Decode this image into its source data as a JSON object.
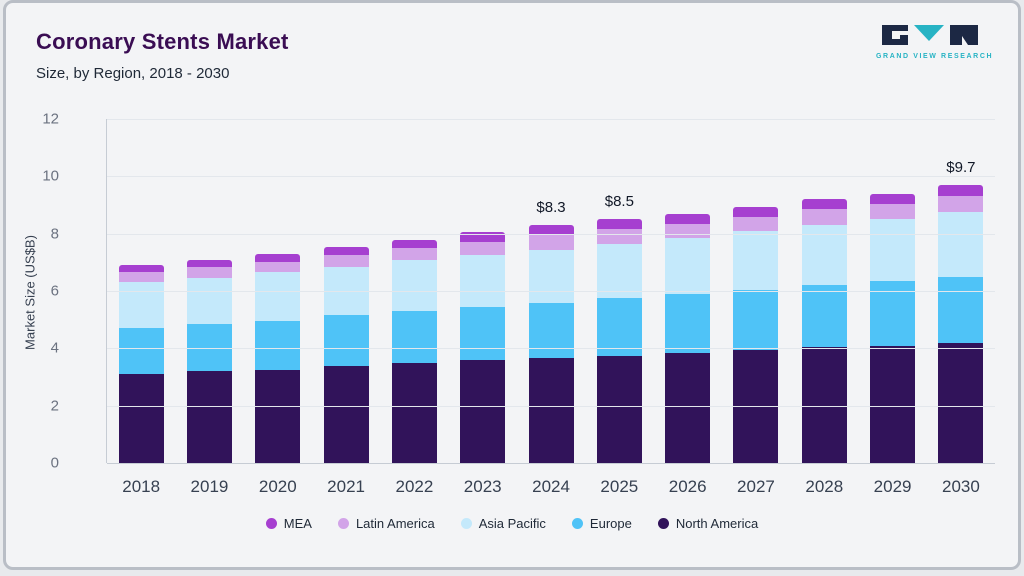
{
  "header": {
    "title": "Coronary Stents Market",
    "subtitle": "Size, by Region, 2018 - 2030",
    "logo_text": "GRAND VIEW RESEARCH"
  },
  "colors": {
    "title": "#3a0d53",
    "logo_teal": "#27b3c4",
    "logo_navy": "#1c2844",
    "background": "#f3f4f6"
  },
  "chart_data": {
    "type": "bar",
    "stacked": true,
    "title": "Coronary Stents Market Size, by Region, 2018 - 2030",
    "xlabel": "",
    "ylabel": "Market Size (US$B)",
    "ylim": [
      0,
      12
    ],
    "yticks": [
      0,
      2,
      4,
      6,
      8,
      10,
      12
    ],
    "grid": true,
    "legend_position": "bottom",
    "categories": [
      "2018",
      "2019",
      "2020",
      "2021",
      "2022",
      "2023",
      "2024",
      "2025",
      "2026",
      "2027",
      "2028",
      "2029",
      "2030"
    ],
    "series": [
      {
        "name": "North America",
        "color": "#31135a",
        "values": [
          3.1,
          3.2,
          3.25,
          3.4,
          3.5,
          3.6,
          3.65,
          3.75,
          3.85,
          3.95,
          4.05,
          4.1,
          4.2
        ]
      },
      {
        "name": "Europe",
        "color": "#4fc3f7",
        "values": [
          1.6,
          1.65,
          1.7,
          1.75,
          1.8,
          1.85,
          1.95,
          2.0,
          2.05,
          2.1,
          2.15,
          2.25,
          2.3
        ]
      },
      {
        "name": "Asia Pacific",
        "color": "#c4e9fb",
        "values": [
          1.6,
          1.6,
          1.7,
          1.7,
          1.8,
          1.8,
          1.85,
          1.9,
          1.95,
          2.05,
          2.1,
          2.15,
          2.25
        ]
      },
      {
        "name": "Latin America",
        "color": "#d2a4e8",
        "values": [
          0.35,
          0.38,
          0.38,
          0.42,
          0.42,
          0.47,
          0.5,
          0.5,
          0.5,
          0.5,
          0.55,
          0.55,
          0.55
        ]
      },
      {
        "name": "MEA",
        "color": "#a63fd0",
        "values": [
          0.25,
          0.27,
          0.27,
          0.28,
          0.28,
          0.33,
          0.35,
          0.35,
          0.35,
          0.35,
          0.35,
          0.35,
          0.4
        ]
      }
    ],
    "totals": [
      6.9,
      7.1,
      7.3,
      7.55,
      7.8,
      8.05,
      8.3,
      8.5,
      8.7,
      8.95,
      9.2,
      9.4,
      9.7
    ],
    "annotations": [
      {
        "category": "2024",
        "label": "$8.3"
      },
      {
        "category": "2025",
        "label": "$8.5"
      },
      {
        "category": "2030",
        "label": "$9.7"
      }
    ]
  }
}
